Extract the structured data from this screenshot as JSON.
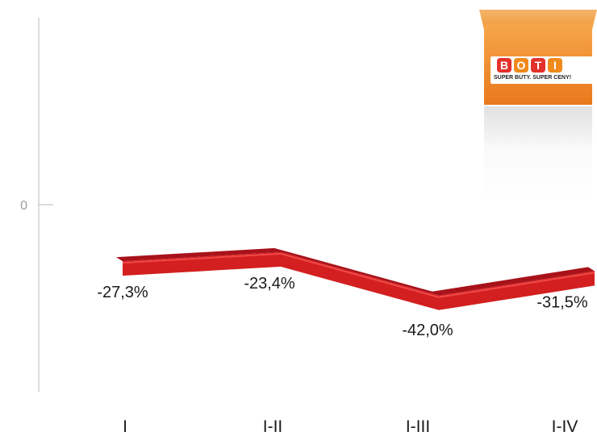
{
  "chart_data": {
    "type": "line",
    "title": "",
    "xlabel": "",
    "ylabel": "",
    "categories": [
      "I",
      "I-II",
      "I-III",
      "I-IV"
    ],
    "series": [
      {
        "values": [
          -27.3,
          -23.4,
          -42.0,
          -31.5
        ],
        "labels": [
          "-27,3%",
          "-23,4%",
          "-42,0%",
          "-31,5%"
        ],
        "color": "#d31f1f"
      }
    ],
    "y_ticks": [
      {
        "value": 0,
        "label": "0"
      }
    ],
    "ylim": [
      -50,
      50
    ],
    "grid": false,
    "legend": "none",
    "style": "3d-ribbon"
  },
  "logo": {
    "name": "BOTI",
    "letters": [
      "B",
      "O",
      "T",
      "I"
    ],
    "slogan": "SUPER BUTY. SUPER CENY!",
    "colors": {
      "cube": "#ef8a2a",
      "letter_red": "#e4302b",
      "letter_orange": "#f08a1c"
    }
  }
}
